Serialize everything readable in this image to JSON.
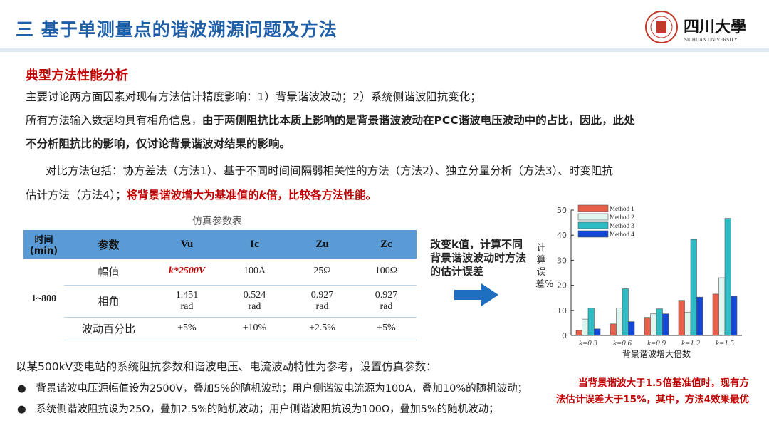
{
  "header": {
    "title": "三 基于单测量点的谐波溯源问题及方法",
    "logo_text": "四川大学",
    "logo_sub": "SICHUAN UNIVERSITY"
  },
  "section": {
    "heading": "典型方法性能分析"
  },
  "para": {
    "l1": "主要讨论两方面因素对现有方法估计精度影响：1）背景谐波波动；2）系统侧谐波阻抗变化；",
    "l2a": "所有方法输入数据均具有相角信息，",
    "l2b": "由于两侧阻抗比本质上影响的是背景谐波波动在PCC谐波电压波动中的占比，因此，此处",
    "l3": "不分析阻抗比的影响，仅讨论背景谐波对结果的影响。",
    "l4": "对比方法包括：协方差法（方法1）、基于不同时间间隔弱相关性的方法（方法2）、独立分量分析（方法3）、时变阻抗",
    "l5a": "估计方法（方法4）；",
    "l5b": "将背景谐波增大为基准值的",
    "l5k": "k",
    "l5c": "倍，比较各方法性能。"
  },
  "table": {
    "caption": "仿真参数表",
    "headers": [
      "时间(min)",
      "参数",
      "Vu",
      "Ic",
      "Zu",
      "Zc"
    ],
    "time": "1~800",
    "rows": [
      {
        "param": "幅值",
        "vals": [
          "k*2500V",
          "100A",
          "25Ω",
          "100Ω"
        ]
      },
      {
        "param": "相角",
        "vals": [
          "1.451 rad",
          "0.524 rad",
          "0.927 rad",
          "0.927 rad"
        ]
      },
      {
        "param": "波动百分比",
        "vals": [
          "±5%",
          "±10%",
          "±2.5%",
          "±5%"
        ]
      }
    ]
  },
  "note": "改变k值，计算不同背景谐波波动时方法的估计误差",
  "chart_data": {
    "type": "bar",
    "categories": [
      "k=0.3",
      "k=0.6",
      "k=0.9",
      "k=1.2",
      "k=1.5"
    ],
    "series": [
      {
        "name": "Method 1",
        "color": "#e8604a",
        "values": [
          2,
          4.6,
          7.2,
          14,
          16.5
        ]
      },
      {
        "name": "Method 2",
        "color": "#dff5f0",
        "values": [
          6.5,
          11,
          8.6,
          9.3,
          23
        ]
      },
      {
        "name": "Method 3",
        "color": "#2fbcc4",
        "values": [
          11,
          18.6,
          10.6,
          38.3,
          46.7
        ]
      },
      {
        "name": "Method 4",
        "color": "#1448d6",
        "values": [
          2.6,
          5.5,
          8.6,
          15.3,
          15.6
        ]
      }
    ],
    "ylabel": "计算误差%",
    "xlabel": "背景谐波增大倍数",
    "ylim": [
      0,
      50
    ],
    "yticks": [
      0,
      10,
      20,
      30,
      40,
      50
    ],
    "legend": "top-left"
  },
  "bottom": {
    "intro": "以某500kV变电站的系统阻抗参数和谐波电压、电流波动特性为参考，设置仿真参数：",
    "bullets": [
      "背景谐波电压源幅值设为2500V，叠加5%的随机波动；用户侧谐波电流源为100A，叠加10%的随机波动；",
      "系统侧谐波阻抗设为25Ω，叠加2.5%的随机波动；用户侧谐波阻抗设为100Ω，叠加5%的随机波动；"
    ],
    "conclusion": [
      "当背景谐波大于1.5倍基准值时，现有方",
      "法估计误差大于15%，其中，方法4效果最优"
    ]
  }
}
